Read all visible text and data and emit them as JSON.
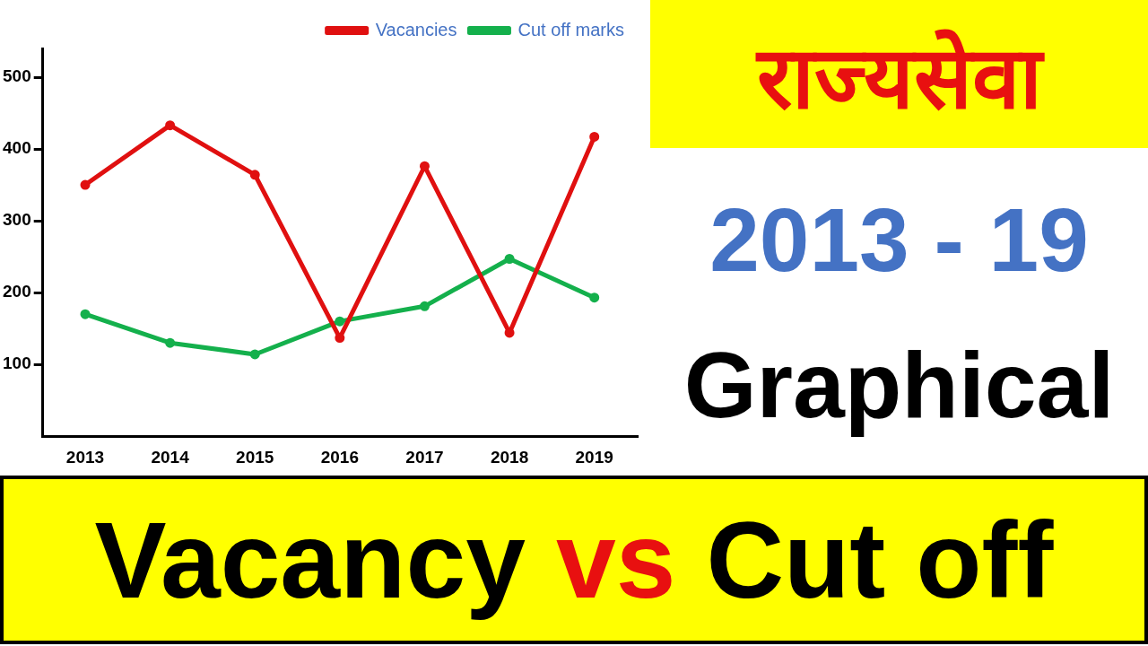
{
  "chart_data": {
    "type": "line",
    "title": "Vacancy vs Cut off",
    "subtitle": "राज्यसेवा",
    "annotations": [
      "2013 - 19",
      "Graphical"
    ],
    "categories": [
      "2013",
      "2014",
      "2015",
      "2016",
      "2017",
      "2018",
      "2019"
    ],
    "series": [
      {
        "name": "Vacancies",
        "color": "#e01010",
        "values": [
          350,
          433,
          364,
          137,
          376,
          144,
          417
        ]
      },
      {
        "name": "Cut off marks",
        "color": "#14b04c",
        "values": [
          170,
          130,
          114,
          160,
          181,
          247,
          193
        ]
      }
    ],
    "ylim": [
      0,
      540
    ],
    "yticks": [
      100,
      200,
      300,
      400,
      500
    ],
    "grid": false,
    "legend": "top right",
    "marker": "circle",
    "line_style": "solid"
  }
}
